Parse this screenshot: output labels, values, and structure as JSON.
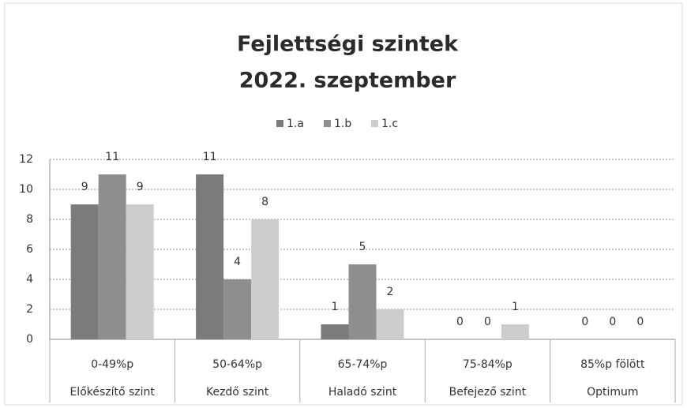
{
  "chart_data": {
    "type": "bar",
    "title": [
      "Fejlettségi szintek",
      "2022. szeptember"
    ],
    "categories": [
      [
        "0-49%p",
        "Előkészítő szint"
      ],
      [
        "50-64%p",
        "Kezdő szint"
      ],
      [
        "65-74%p",
        "Haladó szint"
      ],
      [
        "75-84%p",
        "Befejező szint"
      ],
      [
        "85%p fölött",
        "Optimum"
      ]
    ],
    "series": [
      {
        "name": "1.a",
        "color": "#7b7b7b",
        "values": [
          9,
          11,
          1,
          0,
          0
        ]
      },
      {
        "name": "1.b",
        "color": "#8e8e8e",
        "values": [
          11,
          4,
          5,
          0,
          0
        ]
      },
      {
        "name": "1.c",
        "color": "#cdcdcd",
        "values": [
          9,
          8,
          2,
          1,
          0
        ]
      }
    ],
    "ylim": [
      0,
      12
    ],
    "yticks": [
      0,
      2,
      4,
      6,
      8,
      10,
      12
    ],
    "grid": true,
    "legend": "top"
  }
}
